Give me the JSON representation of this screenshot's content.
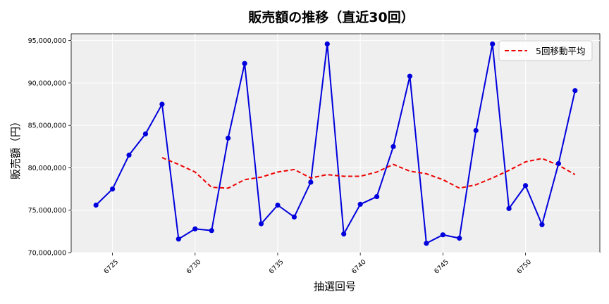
{
  "chart_data": {
    "type": "line",
    "title": "販売額の推移（直近30回）",
    "xlabel": "抽選回号",
    "ylabel": "販売額（円）",
    "xlim": [
      6722.5,
      6754.5
    ],
    "ylim": [
      70000000,
      95800000
    ],
    "xticks": [
      6725,
      6730,
      6735,
      6740,
      6745,
      6750
    ],
    "xtick_labels": [
      "6725",
      "6730",
      "6735",
      "6740",
      "6745",
      "6750"
    ],
    "yticks": [
      70000000,
      75000000,
      80000000,
      85000000,
      90000000,
      95000000
    ],
    "ytick_labels": [
      "70,000,000",
      "75,000,000",
      "80,000,000",
      "85,000,000",
      "90,000,000",
      "95,000,000"
    ],
    "grid": true,
    "legend_position": "top-right",
    "series": [
      {
        "color": "#0000dd",
        "style": "solid-with-markers",
        "x": [
          6724,
          6725,
          6726,
          6727,
          6728,
          6729,
          6730,
          6731,
          6732,
          6733,
          6734,
          6735,
          6736,
          6737,
          6738,
          6739,
          6740,
          6741,
          6742,
          6743,
          6744,
          6745,
          6746,
          6747,
          6748,
          6749,
          6750,
          6751,
          6752,
          6753
        ],
        "values": [
          75600000,
          77500000,
          81500000,
          84000000,
          87500000,
          71600000,
          72800000,
          72600000,
          83500000,
          92300000,
          73400000,
          75600000,
          74200000,
          78300000,
          94600000,
          72200000,
          75700000,
          76600000,
          82500000,
          90800000,
          71100000,
          72100000,
          71700000,
          84400000,
          94600000,
          75200000,
          77900000,
          73300000,
          80500000,
          89100000
        ]
      },
      {
        "name": "5回移動平均",
        "color": "#ee0000",
        "style": "dashed",
        "x": [
          6728,
          6729,
          6730,
          6731,
          6732,
          6733,
          6734,
          6735,
          6736,
          6737,
          6738,
          6739,
          6740,
          6741,
          6742,
          6743,
          6744,
          6745,
          6746,
          6747,
          6748,
          6749,
          6750,
          6751,
          6752,
          6753
        ],
        "values": [
          81200000,
          80400000,
          79500000,
          77700000,
          77600000,
          78600000,
          78900000,
          79500000,
          79800000,
          78800000,
          79200000,
          79000000,
          79000000,
          79500000,
          80400000,
          79600000,
          79300000,
          78600000,
          77600000,
          78000000,
          78800000,
          79700000,
          80700000,
          81100000,
          80300000,
          79200000
        ]
      }
    ]
  }
}
